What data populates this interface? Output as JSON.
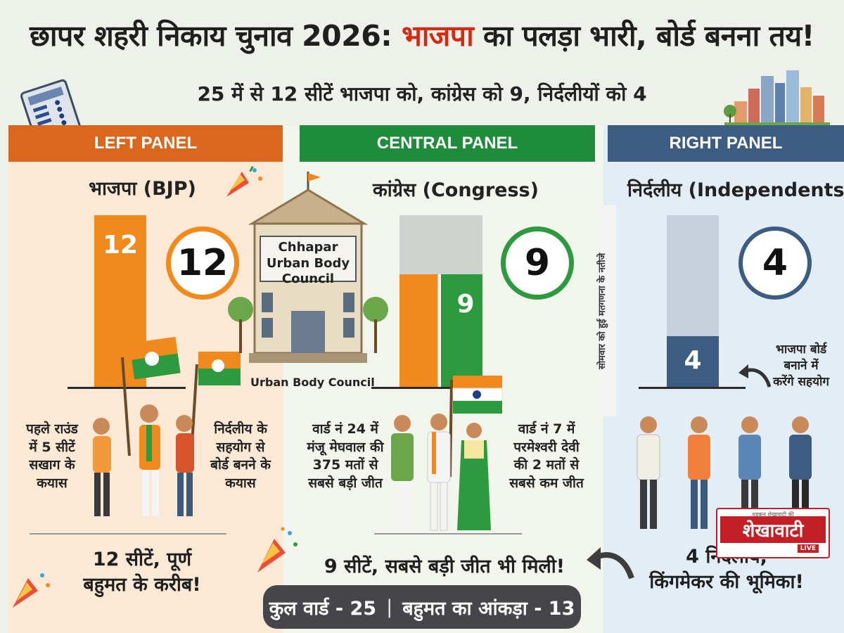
{
  "header": {
    "title_prefix": "छापर शहरी निकाय चुनाव 2026: ",
    "title_highlight": "भाजपा",
    "title_suffix": " का पलड़ा भारी, बोर्ड बनना तय!",
    "subtitle": "25 में से 12 सीटें भाजपा को, कांग्रेस को 9, निर्दलीयों को 4"
  },
  "left_panel": {
    "heading": "LEFT PANEL",
    "party": "भाजपा (BJP)",
    "bar_value": "12",
    "circle_value": "12",
    "note_left": [
      "पहले राउंड",
      "में 5 सीटें",
      "सखाग के",
      "कयास"
    ],
    "note_right": [
      "निर्दलीय के",
      "सहयोग से",
      "बोर्ड बनने के",
      "कयास"
    ],
    "footer": [
      "12 सीटें, पूर्ण",
      "बहुमत के करीब!"
    ],
    "color": "#f18a1c"
  },
  "center_panel": {
    "heading": "CENTRAL PANEL",
    "party": "कांग्रेस (Congress)",
    "bar_value": "9",
    "circle_value": "9",
    "building_lines": [
      "Chhapar",
      "Urban Body",
      "Council"
    ],
    "building_caption": "Urban Body Council",
    "note_left": [
      "वार्ड नं 24 में",
      "मंजू मेघवाल की",
      "375 मतों से",
      "सबसे बड़ी जीत"
    ],
    "note_right": [
      "वार्ड नं 7 में",
      "परमेश्वरी देवी",
      "की 2 मतों से",
      "सबसे कम जीत"
    ],
    "footer": "9 सीटें, सबसे बड़ी जीत भी मिली!",
    "color": "#2d9a3f"
  },
  "right_panel": {
    "heading": "RIGHT PANEL",
    "party": "निर्दलीय (Independents)",
    "bar_value": "4",
    "circle_value": "4",
    "vertical_note": "सोमवार को हुई मतगणना के नतीजे",
    "side_note": [
      "भाजपा बोर्ड",
      "बनाने में",
      "करेंगे सहयोग"
    ],
    "footer": [
      "4 निर्दलीय,",
      "किंगमेकर की भूमिका!"
    ],
    "color": "#3d5c82"
  },
  "bottom_bar": {
    "total_wards": "कुल वार्ड - 25",
    "separator": "|",
    "majority": "बहुमत का आंकड़ा - 13"
  },
  "logo": {
    "tagline": "धड़कन शेखावाटी की",
    "name": "शेखावाटी",
    "live": "LIVE"
  },
  "icons": [
    "evm-machine-icon",
    "city-skyline-icon",
    "party-popper-icon",
    "building-icon",
    "flag-icon",
    "curved-arrow-icon"
  ]
}
